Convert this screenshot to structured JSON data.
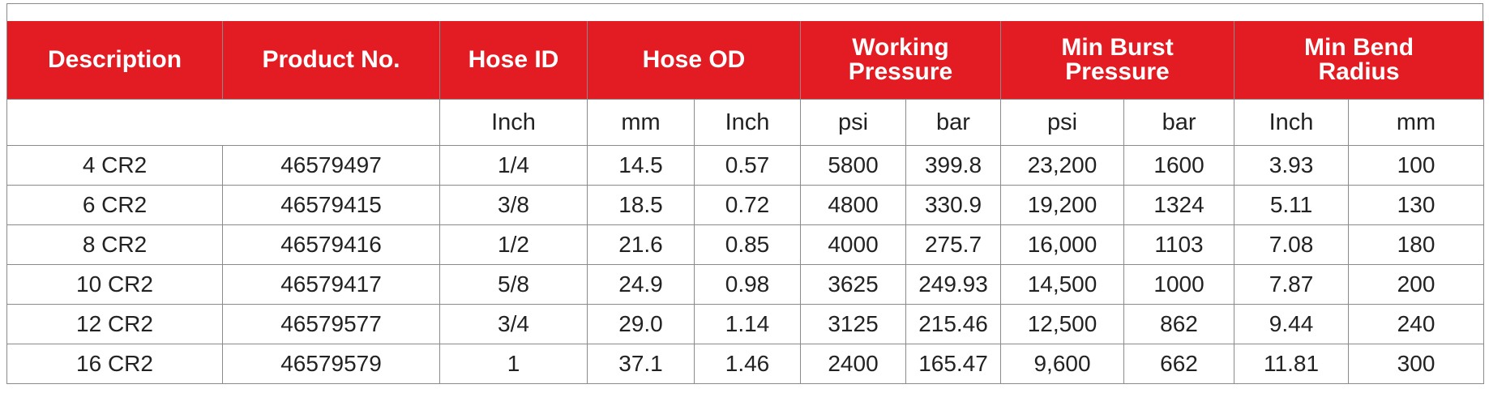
{
  "headers": {
    "description": "Description",
    "product_no": "Product No.",
    "hose_id": "Hose ID",
    "hose_od": "Hose OD",
    "working_pressure": [
      "Working",
      "Pressure"
    ],
    "min_burst_pressure": [
      "Min Burst",
      "Pressure"
    ],
    "min_bend_radius": [
      "Min Bend",
      "Radius"
    ]
  },
  "units": {
    "hose_id": "Inch",
    "od_mm": "mm",
    "od_inch": "Inch",
    "wp_psi": "psi",
    "wp_bar": "bar",
    "bp_psi": "psi",
    "bp_bar": "bar",
    "br_inch": "Inch",
    "br_mm": "mm"
  },
  "rows": [
    [
      "4 CR2",
      "46579497",
      "1/4",
      "14.5",
      "0.57",
      "5800",
      "399.8",
      "23,200",
      "1600",
      "3.93",
      "100"
    ],
    [
      "6 CR2",
      "46579415",
      "3/8",
      "18.5",
      "0.72",
      "4800",
      "330.9",
      "19,200",
      "1324",
      "5.11",
      "130"
    ],
    [
      "8 CR2",
      "46579416",
      "1/2",
      "21.6",
      "0.85",
      "4000",
      "275.7",
      "16,000",
      "1103",
      "7.08",
      "180"
    ],
    [
      "10 CR2",
      "46579417",
      "5/8",
      "24.9",
      "0.98",
      "3625",
      "249.93",
      "14,500",
      "1000",
      "7.87",
      "200"
    ],
    [
      "12 CR2",
      "46579577",
      "3/4",
      "29.0",
      "1.14",
      "3125",
      "215.46",
      "12,500",
      "862",
      "9.44",
      "240"
    ],
    [
      "16 CR2",
      "46579579",
      "1",
      "37.1",
      "1.46",
      "2400",
      "165.47",
      "9,600",
      "662",
      "11.81",
      "300"
    ]
  ],
  "colors": {
    "header_bg": "#e31b23",
    "header_text": "#ffffff",
    "border": "#8a8a8a"
  }
}
